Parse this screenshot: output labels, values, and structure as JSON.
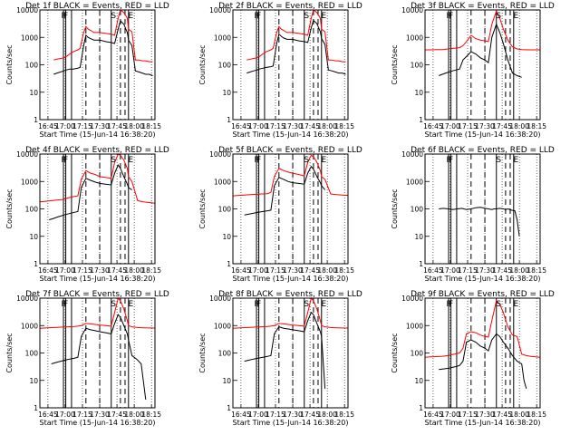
{
  "figure": {
    "common": {
      "xlabel": "Start Time (15-Jun-14 16:38:20)",
      "ylabel": "Counts/sec",
      "x_tick_labels": [
        "16:45",
        "17:00",
        "17:15",
        "17:30",
        "17:45",
        "18:00",
        "18:15"
      ],
      "y_tick_labels": [
        "1",
        "10",
        "100",
        "1000",
        "10000"
      ],
      "ylim": [
        1,
        10000
      ],
      "y_scale": "log",
      "x_range_minutes_after_start": [
        0,
        100
      ],
      "series_colors": {
        "events": "#000000",
        "lld": "#ff0000"
      }
    }
  },
  "chart_data": [
    {
      "type": "line",
      "title": "Det 1f BLACK = Events, RED = LLD",
      "annotations": [
        "F",
        "F",
        "S",
        "E"
      ],
      "event_lines_min": [
        20.5,
        22.5,
        27.5,
        40,
        52,
        62,
        70,
        74,
        77
      ],
      "series": [
        {
          "x": [
            12,
            15,
            18,
            21,
            23,
            26,
            29,
            33,
            35,
            38,
            40,
            42,
            44,
            47,
            52,
            57,
            62,
            65,
            68,
            70,
            73,
            76,
            77,
            80,
            83,
            86,
            89,
            92,
            95,
            98
          ],
          "y": [
            150,
            160,
            170,
            180,
            200,
            250,
            300,
            350,
            400,
            1500,
            2500,
            2000,
            1800,
            1500,
            1500,
            1400,
            1300,
            1200,
            5000,
            10000,
            8000,
            5000,
            2000,
            1600,
            150,
            150,
            140,
            140,
            130,
            130
          ]
        },
        {
          "x": [
            12,
            15,
            18,
            21,
            23,
            26,
            29,
            33,
            35,
            38,
            40,
            42,
            44,
            47,
            52,
            57,
            62,
            65,
            68,
            70,
            73,
            76,
            77,
            80,
            83,
            86,
            89,
            92,
            95,
            98
          ],
          "y": [
            45,
            50,
            55,
            60,
            65,
            70,
            70,
            75,
            80,
            500,
            1200,
            1000,
            900,
            800,
            800,
            700,
            650,
            600,
            2000,
            4000,
            3000,
            1500,
            800,
            500,
            60,
            55,
            50,
            45,
            45,
            40
          ]
        }
      ]
    },
    {
      "type": "line",
      "title": "Det 2f BLACK = Events, RED = LLD",
      "annotations": [
        "F",
        "F",
        "S",
        "E"
      ],
      "event_lines_min": [
        20.5,
        22.5,
        27.5,
        40,
        52,
        62,
        70,
        74,
        77
      ],
      "series": [
        {
          "x": [
            12,
            15,
            18,
            21,
            23,
            26,
            29,
            33,
            35,
            38,
            40,
            42,
            44,
            47,
            52,
            57,
            62,
            65,
            68,
            70,
            73,
            76,
            77,
            80,
            83,
            86,
            89,
            92,
            95,
            98
          ],
          "y": [
            150,
            160,
            170,
            180,
            200,
            250,
            300,
            350,
            400,
            1500,
            2500,
            2000,
            1800,
            1500,
            1500,
            1400,
            1300,
            1200,
            5000,
            10000,
            8000,
            5000,
            2000,
            1600,
            150,
            150,
            140,
            140,
            130,
            130
          ]
        },
        {
          "x": [
            12,
            15,
            18,
            21,
            23,
            26,
            29,
            33,
            35,
            38,
            40,
            42,
            44,
            47,
            52,
            57,
            62,
            65,
            68,
            70,
            73,
            76,
            77,
            80,
            83,
            86,
            89,
            92,
            95,
            98
          ],
          "y": [
            50,
            55,
            60,
            65,
            70,
            75,
            80,
            85,
            90,
            600,
            1300,
            1100,
            950,
            850,
            850,
            750,
            700,
            650,
            2200,
            4200,
            3200,
            1600,
            900,
            550,
            65,
            60,
            55,
            50,
            50,
            45
          ]
        }
      ]
    },
    {
      "type": "line",
      "title": "Det 3f BLACK = Events, RED = LLD",
      "annotations": [
        "F",
        "F",
        "S",
        "E"
      ],
      "event_lines_min": [
        20.5,
        22.5,
        27.5,
        40,
        52,
        62,
        70,
        74,
        77
      ],
      "series": [
        {
          "x": [
            0,
            5,
            10,
            15,
            20,
            25,
            30,
            33,
            36,
            40,
            44,
            48,
            52,
            55,
            58,
            62,
            65,
            68,
            72,
            76,
            80,
            84,
            90,
            95,
            100
          ],
          "y": [
            350,
            350,
            360,
            360,
            380,
            400,
            420,
            500,
            700,
            1200,
            900,
            800,
            750,
            700,
            3000,
            9000,
            5000,
            2000,
            800,
            450,
            380,
            360,
            350,
            350,
            350
          ]
        },
        {
          "x": [
            12,
            15,
            18,
            21,
            24,
            27,
            30,
            33,
            36,
            40,
            44,
            48,
            52,
            55,
            58,
            62,
            65,
            68,
            72,
            76,
            80,
            84
          ],
          "y": [
            40,
            45,
            50,
            55,
            60,
            65,
            70,
            150,
            200,
            300,
            250,
            180,
            150,
            120,
            1000,
            3000,
            1500,
            600,
            150,
            50,
            40,
            35
          ]
        }
      ]
    },
    {
      "type": "line",
      "title": "Det 4f BLACK = Events, RED = LLD",
      "annotations": [
        "F",
        "F",
        "S",
        "E"
      ],
      "event_lines_min": [
        20.5,
        22.5,
        27.5,
        40,
        52,
        62,
        70,
        74,
        77
      ],
      "series": [
        {
          "x": [
            0,
            5,
            10,
            15,
            20,
            23,
            26,
            29,
            33,
            36,
            40,
            44,
            48,
            52,
            57,
            62,
            65,
            68,
            70,
            73,
            76,
            77,
            80,
            85,
            90,
            95,
            100
          ],
          "y": [
            180,
            190,
            200,
            210,
            220,
            240,
            260,
            280,
            300,
            1200,
            2500,
            2000,
            1800,
            1500,
            1400,
            1300,
            5000,
            10000,
            9000,
            6000,
            3000,
            1500,
            1000,
            200,
            180,
            170,
            160
          ]
        },
        {
          "x": [
            8,
            12,
            15,
            18,
            21,
            24,
            27,
            30,
            33,
            36,
            40,
            44,
            48,
            52,
            57,
            62,
            65,
            68,
            70,
            73,
            76,
            77,
            80
          ],
          "y": [
            40,
            45,
            50,
            55,
            60,
            65,
            70,
            75,
            80,
            600,
            1300,
            1100,
            950,
            850,
            800,
            750,
            2000,
            4000,
            3000,
            1500,
            800,
            600,
            500
          ]
        }
      ]
    },
    {
      "type": "line",
      "title": "Det 5f BLACK = Events, RED = LLD",
      "annotations": [
        "F",
        "F",
        "S",
        "E"
      ],
      "event_lines_min": [
        20.5,
        22.5,
        27.5,
        40,
        52,
        62,
        70,
        74,
        77
      ],
      "series": [
        {
          "x": [
            0,
            5,
            10,
            15,
            20,
            25,
            30,
            33,
            36,
            40,
            44,
            48,
            52,
            57,
            62,
            65,
            68,
            70,
            73,
            76,
            77,
            80,
            85,
            90,
            95,
            100
          ],
          "y": [
            300,
            310,
            320,
            330,
            340,
            350,
            360,
            400,
            1500,
            3000,
            2500,
            2200,
            2000,
            1800,
            1600,
            5000,
            9000,
            8000,
            5000,
            2500,
            1500,
            1200,
            350,
            330,
            320,
            310
          ]
        },
        {
          "x": [
            10,
            14,
            18,
            22,
            26,
            30,
            33,
            36,
            40,
            44,
            48,
            52,
            57,
            62,
            65,
            68,
            70,
            73,
            76,
            77,
            80
          ],
          "y": [
            60,
            65,
            70,
            75,
            80,
            85,
            90,
            700,
            1400,
            1200,
            1000,
            900,
            850,
            800,
            2000,
            3500,
            2800,
            1500,
            900,
            700,
            500
          ]
        }
      ]
    },
    {
      "type": "line",
      "title": "Det 6f BLACK = Events, RED = LLD",
      "annotations": [
        "F",
        "F",
        "S",
        "E"
      ],
      "event_lines_min": [
        20.5,
        22.5,
        27.5,
        40,
        52,
        62,
        70,
        74,
        77
      ],
      "series": [
        {
          "x": [],
          "y": []
        },
        {
          "x": [
            12,
            16,
            20,
            24,
            28,
            32,
            36,
            40,
            44,
            48,
            50,
            52,
            55,
            58,
            60,
            62,
            65,
            68,
            70,
            72,
            75,
            78,
            80,
            82
          ],
          "y": [
            100,
            105,
            100,
            95,
            100,
            105,
            95,
            100,
            110,
            115,
            110,
            105,
            100,
            95,
            100,
            100,
            105,
            100,
            95,
            100,
            90,
            85,
            40,
            10
          ]
        }
      ]
    },
    {
      "type": "line",
      "title": "Det 7f BLACK = Events, RED = LLD",
      "annotations": [
        "F",
        "F",
        "S",
        "E"
      ],
      "event_lines_min": [
        20.5,
        22.5,
        27.5,
        40,
        52,
        62,
        70,
        74,
        77
      ],
      "series": [
        {
          "x": [
            0,
            5,
            10,
            15,
            20,
            25,
            30,
            33,
            36,
            40,
            44,
            48,
            52,
            57,
            62,
            65,
            68,
            70,
            73,
            76,
            77,
            80,
            85,
            90,
            95,
            100
          ],
          "y": [
            800,
            820,
            840,
            860,
            880,
            900,
            920,
            950,
            1000,
            1200,
            1150,
            1100,
            1050,
            1000,
            950,
            3000,
            10000,
            8000,
            4000,
            1500,
            1000,
            900,
            850,
            830,
            820,
            810
          ]
        },
        {
          "x": [
            10,
            14,
            18,
            22,
            26,
            30,
            33,
            36,
            40,
            44,
            48,
            52,
            57,
            62,
            65,
            68,
            70,
            73,
            76,
            77,
            80,
            84,
            88,
            92
          ],
          "y": [
            40,
            45,
            50,
            55,
            60,
            65,
            70,
            400,
            800,
            700,
            650,
            600,
            550,
            500,
            1200,
            2500,
            2000,
            1000,
            500,
            300,
            80,
            60,
            40,
            2
          ]
        }
      ]
    },
    {
      "type": "line",
      "title": "Det 8f BLACK = Events, RED = LLD",
      "annotations": [
        "F",
        "F",
        "S",
        "E"
      ],
      "event_lines_min": [
        20.5,
        22.5,
        27.5,
        40,
        52,
        62,
        70,
        74,
        77
      ],
      "series": [
        {
          "x": [
            0,
            5,
            10,
            15,
            20,
            25,
            30,
            33,
            36,
            40,
            44,
            48,
            52,
            57,
            62,
            65,
            68,
            70,
            73,
            76,
            77,
            80,
            85,
            90,
            95,
            100
          ],
          "y": [
            800,
            820,
            840,
            860,
            880,
            900,
            920,
            950,
            1000,
            1200,
            1150,
            1100,
            1050,
            1000,
            950,
            3000,
            10000,
            8000,
            4000,
            1500,
            1000,
            900,
            850,
            830,
            820,
            810
          ]
        },
        {
          "x": [
            10,
            14,
            18,
            22,
            26,
            30,
            33,
            36,
            40,
            44,
            48,
            52,
            57,
            62,
            65,
            68,
            70,
            73,
            76,
            77,
            80
          ],
          "y": [
            50,
            55,
            60,
            65,
            70,
            75,
            80,
            500,
            900,
            800,
            750,
            700,
            650,
            600,
            1500,
            3000,
            2500,
            1200,
            600,
            400,
            5
          ]
        }
      ]
    },
    {
      "type": "line",
      "title": "Det 9f BLACK = Events, RED = LLD",
      "annotations": [
        "F",
        "F",
        "S",
        "E"
      ],
      "event_lines_min": [
        20.5,
        22.5,
        27.5,
        40,
        52,
        62,
        70,
        74,
        77
      ],
      "series": [
        {
          "x": [
            0,
            5,
            10,
            15,
            20,
            25,
            30,
            33,
            36,
            40,
            44,
            48,
            52,
            55,
            58,
            62,
            65,
            68,
            72,
            76,
            80,
            84,
            88,
            92,
            96,
            100
          ],
          "y": [
            70,
            72,
            74,
            76,
            80,
            90,
            100,
            150,
            500,
            600,
            550,
            450,
            400,
            380,
            1500,
            8000,
            6000,
            3000,
            900,
            450,
            400,
            90,
            80,
            75,
            72,
            70
          ]
        },
        {
          "x": [
            12,
            15,
            18,
            21,
            24,
            27,
            30,
            33,
            36,
            40,
            44,
            48,
            52,
            55,
            58,
            62,
            65,
            68,
            72,
            76,
            80,
            84,
            86,
            88
          ],
          "y": [
            25,
            26,
            27,
            28,
            30,
            32,
            35,
            50,
            250,
            300,
            250,
            180,
            150,
            120,
            300,
            500,
            400,
            250,
            150,
            80,
            50,
            40,
            10,
            5
          ]
        }
      ]
    }
  ]
}
